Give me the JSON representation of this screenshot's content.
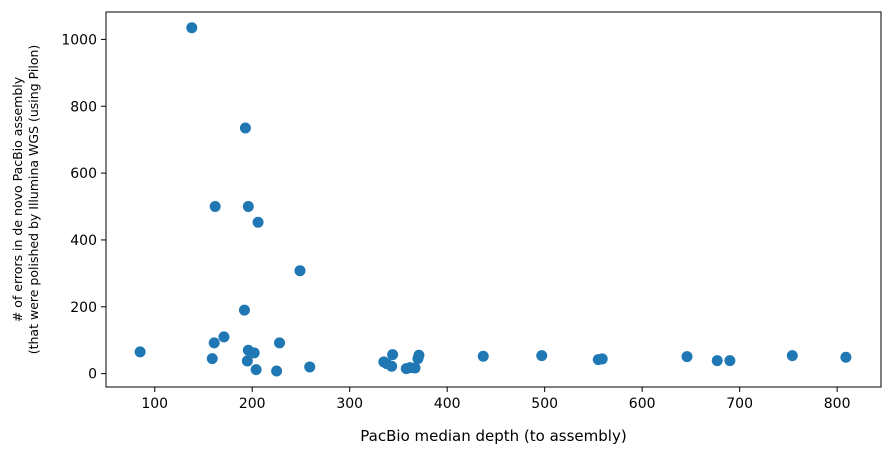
{
  "chart_data": {
    "type": "scatter",
    "title": "",
    "xlabel": "PacBio median depth (to assembly)",
    "ylabel_lines": [
      "# of errors in de novo PacBio assembly",
      "(that were polished by Illumina WGS (using Pilon)"
    ],
    "xlim": [
      50,
      845
    ],
    "ylim": [
      -40,
      1082
    ],
    "xticks": [
      100,
      200,
      300,
      400,
      500,
      600,
      700,
      800
    ],
    "yticks": [
      0,
      200,
      400,
      600,
      800,
      1000
    ],
    "marker_color": "#1f77b4",
    "points": [
      {
        "x": 85,
        "y": 65
      },
      {
        "x": 138,
        "y": 1035
      },
      {
        "x": 159,
        "y": 45
      },
      {
        "x": 161,
        "y": 92
      },
      {
        "x": 162,
        "y": 500
      },
      {
        "x": 171,
        "y": 110
      },
      {
        "x": 192,
        "y": 190
      },
      {
        "x": 193,
        "y": 735
      },
      {
        "x": 195,
        "y": 38
      },
      {
        "x": 196,
        "y": 70
      },
      {
        "x": 196,
        "y": 500
      },
      {
        "x": 202,
        "y": 62
      },
      {
        "x": 204,
        "y": 12
      },
      {
        "x": 206,
        "y": 453
      },
      {
        "x": 225,
        "y": 8
      },
      {
        "x": 228,
        "y": 92
      },
      {
        "x": 249,
        "y": 308
      },
      {
        "x": 259,
        "y": 20
      },
      {
        "x": 335,
        "y": 35
      },
      {
        "x": 338,
        "y": 30
      },
      {
        "x": 343,
        "y": 22
      },
      {
        "x": 344,
        "y": 57
      },
      {
        "x": 358,
        "y": 15
      },
      {
        "x": 362,
        "y": 18
      },
      {
        "x": 367,
        "y": 17
      },
      {
        "x": 370,
        "y": 45
      },
      {
        "x": 371,
        "y": 55
      },
      {
        "x": 437,
        "y": 52
      },
      {
        "x": 497,
        "y": 54
      },
      {
        "x": 555,
        "y": 42
      },
      {
        "x": 559,
        "y": 44
      },
      {
        "x": 646,
        "y": 51
      },
      {
        "x": 677,
        "y": 39
      },
      {
        "x": 690,
        "y": 39
      },
      {
        "x": 754,
        "y": 54
      },
      {
        "x": 809,
        "y": 49
      }
    ]
  }
}
